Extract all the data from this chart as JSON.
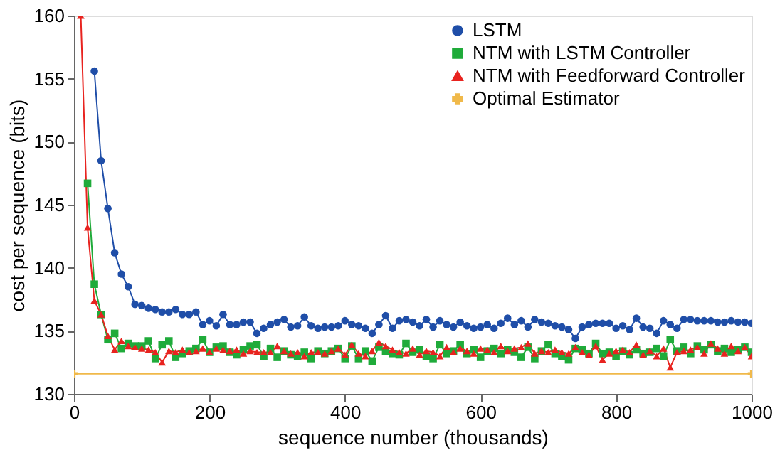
{
  "chart_data": {
    "type": "line",
    "xlabel": "sequence number (thousands)",
    "ylabel": "cost per sequence (bits)",
    "x": [
      10,
      20,
      30,
      40,
      50,
      60,
      70,
      80,
      90,
      100,
      110,
      120,
      130,
      140,
      150,
      160,
      170,
      180,
      190,
      200,
      210,
      220,
      230,
      240,
      250,
      260,
      270,
      280,
      290,
      300,
      310,
      320,
      330,
      340,
      350,
      360,
      370,
      380,
      390,
      400,
      410,
      420,
      430,
      440,
      450,
      460,
      470,
      480,
      490,
      500,
      510,
      520,
      530,
      540,
      550,
      560,
      570,
      580,
      590,
      600,
      610,
      620,
      630,
      640,
      650,
      660,
      670,
      680,
      690,
      700,
      710,
      720,
      730,
      740,
      750,
      760,
      770,
      780,
      790,
      800,
      810,
      820,
      830,
      840,
      850,
      860,
      870,
      880,
      890,
      900,
      910,
      920,
      930,
      940,
      950,
      960,
      970,
      980,
      990,
      1000
    ],
    "xlim": [
      0,
      1000
    ],
    "xticks": [
      0,
      200,
      400,
      600,
      800,
      1000
    ],
    "ylim": [
      130,
      160
    ],
    "yticks": [
      130,
      135,
      140,
      145,
      150,
      155,
      160
    ],
    "grid": false,
    "legend": "top right",
    "line_style": "solid",
    "series": [
      {
        "name": "LSTM",
        "color": "#1f4ea8",
        "marker": "circle",
        "values": [
          null,
          null,
          155.6,
          148.5,
          144.7,
          141.2,
          139.5,
          138.5,
          137.1,
          137.0,
          136.8,
          136.7,
          136.5,
          136.5,
          136.7,
          136.3,
          136.3,
          136.5,
          135.5,
          135.8,
          135.4,
          136.3,
          135.5,
          135.5,
          135.7,
          135.7,
          134.8,
          135.2,
          135.5,
          135.7,
          135.9,
          135.3,
          135.4,
          136.1,
          135.4,
          135.2,
          135.3,
          135.3,
          135.4,
          135.8,
          135.5,
          135.4,
          135.2,
          134.8,
          135.5,
          136.2,
          135.2,
          135.8,
          135.9,
          135.7,
          135.4,
          135.9,
          135.3,
          135.8,
          135.5,
          135.3,
          135.7,
          135.4,
          135.2,
          135.3,
          135.5,
          135.2,
          135.6,
          136.0,
          135.5,
          135.8,
          135.3,
          135.9,
          135.7,
          135.6,
          135.4,
          135.3,
          135.1,
          134.4,
          135.3,
          135.5,
          135.6,
          135.6,
          135.6,
          135.2,
          135.4,
          135.1,
          136.0,
          135.3,
          135.2,
          134.8,
          135.8,
          135.5,
          135.2,
          135.9,
          135.9,
          135.8,
          135.8,
          135.8,
          135.7,
          135.7,
          135.8,
          135.7,
          135.7,
          135.6
        ]
      },
      {
        "name": "NTM with LSTM Controller",
        "color": "#1fab3a",
        "marker": "square",
        "values": [
          null,
          146.7,
          138.7,
          136.3,
          134.3,
          134.8,
          133.6,
          134.0,
          133.8,
          133.8,
          134.2,
          132.8,
          133.9,
          134.2,
          132.9,
          133.2,
          133.4,
          133.6,
          134.3,
          133.3,
          133.7,
          133.8,
          133.3,
          133.1,
          133.5,
          133.8,
          133.9,
          133.0,
          133.6,
          132.9,
          133.4,
          133.1,
          133.0,
          133.3,
          132.8,
          133.4,
          133.2,
          133.4,
          133.6,
          132.8,
          133.8,
          132.8,
          133.4,
          132.6,
          133.7,
          133.4,
          133.2,
          133.1,
          134.0,
          133.3,
          133.5,
          133.0,
          132.8,
          133.9,
          133.2,
          133.4,
          133.9,
          133.2,
          133.5,
          132.9,
          133.4,
          133.6,
          133.2,
          133.5,
          133.3,
          132.9,
          133.7,
          132.8,
          133.4,
          133.9,
          133.2,
          133.0,
          132.7,
          133.6,
          133.5,
          133.2,
          134.0,
          133.2,
          133.3,
          133.0,
          133.4,
          133.1,
          133.5,
          133.2,
          133.3,
          133.6,
          133.0,
          134.3,
          133.4,
          133.7,
          133.2,
          133.8,
          133.5,
          133.9,
          133.4,
          133.6,
          133.3,
          133.5,
          133.7,
          133.3
        ]
      },
      {
        "name": "NTM with Feedforward Controller",
        "color": "#e8231f",
        "marker": "triangle",
        "values": [
          160,
          143.2,
          137.4,
          136.3,
          134.6,
          133.5,
          134.2,
          133.8,
          133.7,
          133.6,
          133.5,
          133.3,
          132.5,
          133.4,
          133.3,
          133.5,
          133.3,
          133.4,
          133.6,
          133.3,
          133.6,
          133.5,
          133.4,
          133.5,
          133.2,
          133.4,
          133.3,
          133.3,
          133.3,
          133.8,
          133.4,
          133.2,
          133.3,
          133.0,
          133.3,
          133.3,
          133.2,
          133.4,
          133.6,
          133.1,
          133.9,
          133.2,
          133.0,
          133.4,
          134.1,
          133.8,
          133.5,
          133.3,
          133.2,
          133.6,
          133.1,
          133.4,
          133.3,
          133.0,
          133.7,
          133.3,
          133.6,
          133.4,
          133.2,
          133.6,
          133.5,
          133.3,
          133.8,
          133.4,
          133.6,
          133.7,
          134.0,
          133.2,
          133.4,
          133.3,
          133.5,
          133.3,
          133.2,
          133.7,
          133.3,
          133.1,
          133.8,
          132.7,
          133.2,
          133.4,
          133.5,
          133.3,
          133.9,
          133.1,
          133.4,
          133.0,
          133.6,
          132.1,
          133.3,
          133.4,
          133.5,
          133.7,
          133.2,
          134.0,
          133.6,
          133.2,
          133.8,
          133.4,
          133.7,
          133.0
        ]
      },
      {
        "name": "Optimal Estimator",
        "color": "#f0b94a",
        "marker": "cross",
        "x": [
          0,
          1000
        ],
        "values": [
          131.6,
          131.6
        ]
      }
    ]
  }
}
